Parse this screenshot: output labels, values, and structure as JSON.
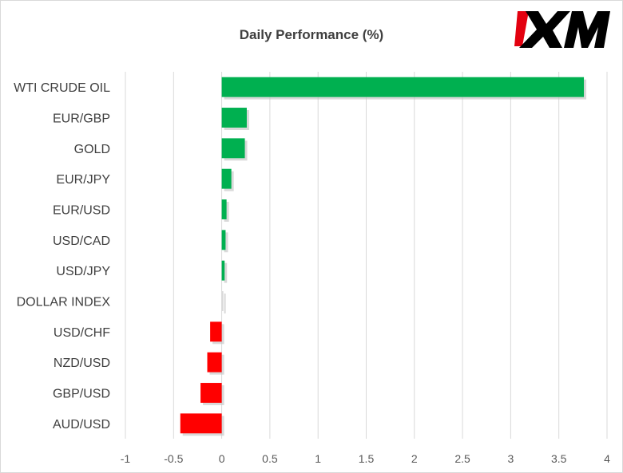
{
  "chart_data": {
    "type": "bar",
    "orientation": "horizontal",
    "title": "Daily Performance (%)",
    "categories": [
      "WTI CRUDE OIL",
      "EUR/GBP",
      "GOLD",
      "EUR/JPY",
      "EUR/USD",
      "USD/CAD",
      "USD/JPY",
      "DOLLAR INDEX",
      "USD/CHF",
      "NZD/USD",
      "GBP/USD",
      "AUD/USD"
    ],
    "values": [
      3.76,
      0.26,
      0.24,
      0.1,
      0.05,
      0.04,
      0.03,
      0.0,
      -0.12,
      -0.15,
      -0.22,
      -0.43
    ],
    "xlim": [
      -1,
      4
    ],
    "xticks": [
      "-1",
      "-0.5",
      "0",
      "0.5",
      "1",
      "1.5",
      "2",
      "2.5",
      "3",
      "3.5",
      "4"
    ],
    "xlabel": "",
    "ylabel": "",
    "grid": "vertical",
    "legend": "none",
    "colors": {
      "positive": "#00b050",
      "negative": "#ff0000",
      "zero": "#d9d9d9"
    }
  },
  "logo": {
    "text": "XM",
    "colors": {
      "mark": "#000000",
      "accent": "#e3000f"
    }
  }
}
